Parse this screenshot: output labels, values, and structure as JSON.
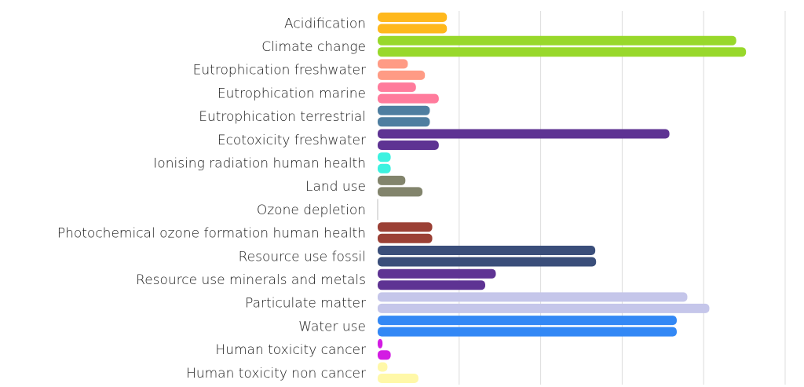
{
  "chart_data": {
    "type": "bar",
    "orientation": "horizontal",
    "categories": [
      "Acidification",
      "Climate change",
      "Eutrophication freshwater",
      "Eutrophication marine",
      "Eutrophication terrestrial",
      "Ecotoxicity freshwater",
      "Ionising radiation human health",
      "Land use",
      "Ozone depletion",
      "Photochemical ozone formation human health",
      "Resource use fossil",
      "Resource use minerals and metals",
      "Particulate matter",
      "Water use",
      "Human toxicity cancer",
      "Human toxicity non cancer"
    ],
    "colors": [
      "#FFB81C",
      "#98D82B",
      "#FF9B85",
      "#FF7B9C",
      "#4E7EA0",
      "#5E3393",
      "#3CF2E0",
      "#82846C",
      "#6A6A6A",
      "#9B4035",
      "#3A4E7A",
      "#5E3393",
      "#C5C6EA",
      "#3388F5",
      "#D31CE3",
      "#FFF8A8"
    ],
    "series": [
      {
        "values": [
          8.5,
          44.0,
          3.7,
          4.7,
          6.4,
          35.8,
          1.6,
          3.4,
          0.0,
          6.7,
          26.7,
          14.5,
          38.0,
          36.7,
          0.6,
          1.2
        ]
      },
      {
        "values": [
          8.5,
          45.2,
          5.8,
          7.5,
          6.4,
          7.5,
          1.6,
          5.5,
          0.0,
          6.7,
          26.8,
          13.2,
          40.7,
          36.7,
          1.6,
          5.0
        ]
      }
    ],
    "xlim": [
      0,
      50
    ],
    "grid": true,
    "xlabel": "",
    "ylabel": "",
    "title": ""
  }
}
